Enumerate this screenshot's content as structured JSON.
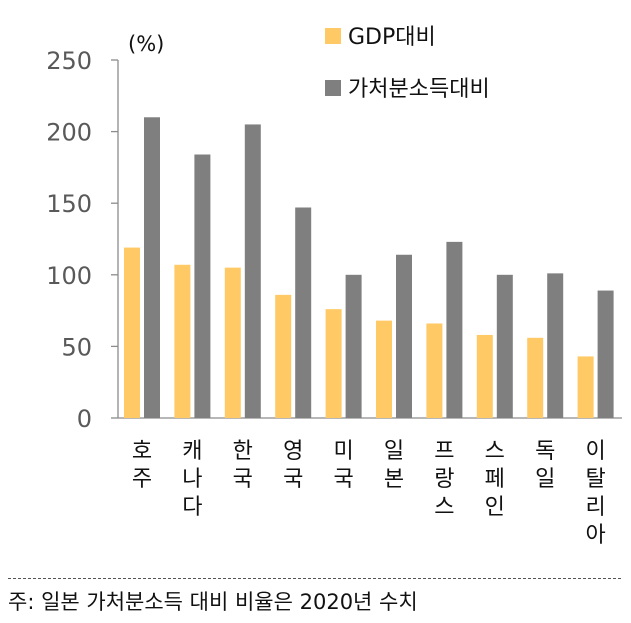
{
  "chart_data": {
    "type": "bar",
    "unit_label": "(%)",
    "categories": [
      "호주",
      "캐나다",
      "한국",
      "영국",
      "미국",
      "일본",
      "프랑스",
      "스페인",
      "독일",
      "이탈리아"
    ],
    "series": [
      {
        "name": "GDP대비",
        "color": "#FFC965",
        "values": [
          119,
          107,
          105,
          86,
          76,
          68,
          66,
          58,
          56,
          43
        ]
      },
      {
        "name": "가처분소득대비",
        "color": "#7F7F7F",
        "values": [
          210,
          184,
          205,
          147,
          100,
          114,
          123,
          100,
          101,
          89
        ]
      }
    ],
    "ylim": [
      0,
      250
    ],
    "yticks": [
      0,
      50,
      100,
      150,
      200,
      250
    ],
    "grid": false,
    "legend_position": "top-right"
  },
  "footnote": "주: 일본 가처분소득 대비 비율은 2020년 수치"
}
